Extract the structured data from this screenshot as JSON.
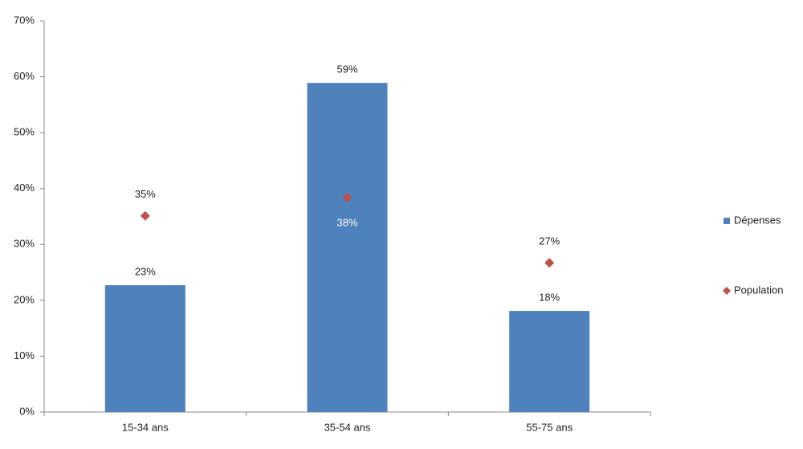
{
  "chart_data": {
    "type": "bar",
    "categories": [
      "15-34 ans",
      "35-54 ans",
      "55-75 ans"
    ],
    "series": [
      {
        "name": "Dépenses",
        "type": "bar",
        "color": "#4f81bd",
        "values": [
          22.7,
          58.9,
          18.1
        ],
        "value_labels": [
          "23%",
          "59%",
          "18%"
        ]
      },
      {
        "name": "Population",
        "type": "scatter",
        "color": "#c0504d",
        "values": [
          35.1,
          38.4,
          26.7
        ],
        "value_labels": [
          "35%",
          "38%",
          "27%"
        ]
      }
    ],
    "ylim": [
      0,
      70
    ],
    "yticks": [
      {
        "value": 0,
        "label": "0%"
      },
      {
        "value": 10,
        "label": "10%"
      },
      {
        "value": 20,
        "label": "20%"
      },
      {
        "value": 30,
        "label": "30%"
      },
      {
        "value": 40,
        "label": "40%"
      },
      {
        "value": 50,
        "label": "50%"
      },
      {
        "value": 60,
        "label": "60%"
      },
      {
        "value": 70,
        "label": "70%"
      }
    ],
    "grid": false,
    "legend": "right"
  }
}
